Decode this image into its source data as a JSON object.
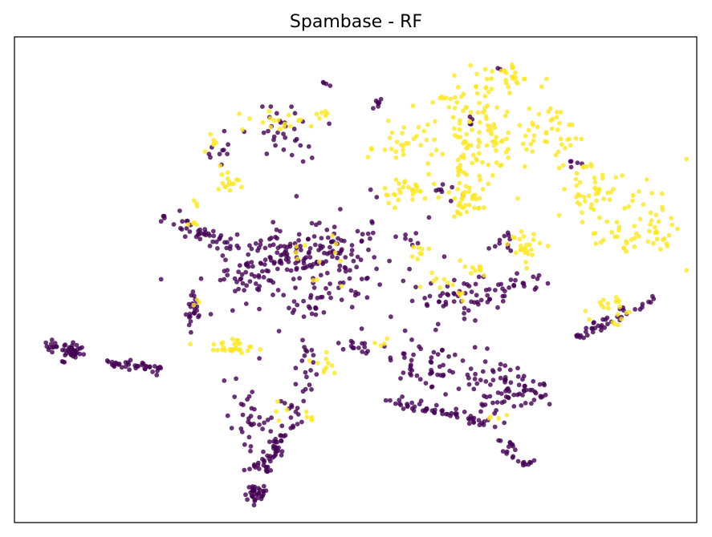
{
  "chart_data": {
    "type": "scatter",
    "title": "Spambase - RF",
    "xlabel": "",
    "ylabel": "",
    "xlim": [
      0,
      100
    ],
    "ylim": [
      0,
      100
    ],
    "axes_ticks": "none",
    "grid": false,
    "legend": "none",
    "colors": {
      "class_0": "#440154",
      "class_1": "#fde725",
      "frame": "#000000",
      "background": "#ffffff"
    },
    "series": [
      {
        "name": "class_0",
        "color": "#440154",
        "clusters": [
          {
            "cx": 5.5,
            "cy": 36.0,
            "sx": 0.6,
            "sy": 0.6,
            "n": 12
          },
          {
            "cx": 8.6,
            "cy": 35.2,
            "sx": 0.7,
            "sy": 0.7,
            "n": 40
          },
          {
            "cx": 7.2,
            "cy": 33.5,
            "sx": 0.3,
            "sy": 0.3,
            "n": 3
          },
          {
            "x0": 11.8,
            "y0": 33.3,
            "x1": 22.0,
            "y1": 31.5,
            "spread": 0.5,
            "n": 38
          },
          {
            "cx": 26.2,
            "cy": 45.0,
            "sx": 0.5,
            "sy": 2.2,
            "n": 24
          },
          {
            "x0": 22.5,
            "y0": 63.0,
            "x1": 33.0,
            "y1": 56.5,
            "spread": 0.8,
            "n": 46
          },
          {
            "cx": 40.0,
            "cy": 56.0,
            "sx": 2.6,
            "sy": 2.3,
            "n": 55
          },
          {
            "cx": 47.0,
            "cy": 55.5,
            "sx": 2.6,
            "sy": 3.0,
            "n": 45
          },
          {
            "cx": 44.5,
            "cy": 51.0,
            "sx": 7.5,
            "sy": 6.0,
            "n": 130
          },
          {
            "cx": 33.5,
            "cy": 51.5,
            "sx": 1.8,
            "sy": 2.8,
            "n": 28
          },
          {
            "cx": 39.5,
            "cy": 80.0,
            "sx": 3.0,
            "sy": 3.0,
            "n": 32
          },
          {
            "cx": 30.0,
            "cy": 77.5,
            "sx": 1.0,
            "sy": 2.2,
            "n": 10
          },
          {
            "cx": 53.0,
            "cy": 86.5,
            "sx": 0.5,
            "sy": 0.6,
            "n": 7
          },
          {
            "cx": 45.5,
            "cy": 90.5,
            "sx": 0.4,
            "sy": 0.4,
            "n": 4
          },
          {
            "x0": 44.0,
            "y0": 37.0,
            "x1": 39.0,
            "y1": 16.0,
            "spread": 0.9,
            "n": 45
          },
          {
            "x0": 39.0,
            "y0": 16.5,
            "x1": 35.5,
            "y1": 10.5,
            "spread": 0.9,
            "n": 40
          },
          {
            "cx": 34.0,
            "cy": 22.0,
            "sx": 1.5,
            "sy": 3.5,
            "n": 30
          },
          {
            "cx": 35.5,
            "cy": 6.0,
            "sx": 0.7,
            "sy": 1.0,
            "n": 34
          },
          {
            "x0": 48.0,
            "y0": 37.0,
            "x1": 52.0,
            "y1": 35.0,
            "spread": 0.6,
            "n": 12
          },
          {
            "x0": 55.0,
            "y0": 25.0,
            "x1": 71.5,
            "y1": 20.0,
            "spread": 0.6,
            "n": 55
          },
          {
            "cx": 61.0,
            "cy": 33.0,
            "sx": 3.5,
            "sy": 3.5,
            "n": 55
          },
          {
            "cx": 70.5,
            "cy": 29.0,
            "sx": 2.5,
            "sy": 3.5,
            "n": 50
          },
          {
            "cx": 75.5,
            "cy": 26.5,
            "sx": 1.5,
            "sy": 1.5,
            "n": 30
          },
          {
            "x0": 72.0,
            "y0": 17.0,
            "x1": 75.0,
            "y1": 11.5,
            "spread": 0.6,
            "n": 22
          },
          {
            "x0": 82.0,
            "y0": 38.0,
            "x1": 93.5,
            "y1": 46.5,
            "spread": 0.6,
            "n": 40
          },
          {
            "x0": 60.0,
            "y0": 45.0,
            "x1": 78.5,
            "y1": 50.0,
            "spread": 1.0,
            "n": 45
          },
          {
            "cx": 66.5,
            "cy": 46.0,
            "sx": 2.5,
            "sy": 3.0,
            "n": 25
          },
          {
            "cx": 72.0,
            "cy": 58.0,
            "sx": 1.0,
            "sy": 1.8,
            "n": 10
          },
          {
            "cx": 63.5,
            "cy": 68.5,
            "sx": 1.5,
            "sy": 1.5,
            "n": 8
          },
          {
            "cx": 57.5,
            "cy": 58.5,
            "sx": 1.0,
            "sy": 1.5,
            "n": 6
          },
          {
            "cx": 66.5,
            "cy": 82.5,
            "sx": 0.6,
            "sy": 0.6,
            "n": 4
          },
          {
            "cx": 71.0,
            "cy": 93.5,
            "sx": 0.3,
            "sy": 0.3,
            "n": 2
          },
          {
            "cx": 81.5,
            "cy": 74.0,
            "sx": 1.2,
            "sy": 0.8,
            "n": 5
          },
          {
            "cx": 44.5,
            "cy": 43.5,
            "sx": 1.0,
            "sy": 0.6,
            "n": 6
          }
        ]
      },
      {
        "name": "class_1",
        "color": "#fde725",
        "clusters": [
          {
            "cx": 38.0,
            "cy": 83.0,
            "sx": 2.5,
            "sy": 1.0,
            "n": 18
          },
          {
            "cx": 45.0,
            "cy": 84.0,
            "sx": 1.0,
            "sy": 1.0,
            "n": 6
          },
          {
            "cx": 29.0,
            "cy": 78.0,
            "sx": 0.6,
            "sy": 1.0,
            "n": 6
          },
          {
            "cx": 32.0,
            "cy": 70.0,
            "sx": 1.0,
            "sy": 1.0,
            "n": 10
          },
          {
            "cx": 57.0,
            "cy": 78.0,
            "sx": 2.5,
            "sy": 2.5,
            "n": 28
          },
          {
            "cx": 57.0,
            "cy": 68.0,
            "sx": 2.0,
            "sy": 1.5,
            "n": 28
          },
          {
            "cx": 66.0,
            "cy": 67.0,
            "sx": 2.0,
            "sy": 3.0,
            "n": 45
          },
          {
            "cx": 68.0,
            "cy": 82.0,
            "sx": 3.5,
            "sy": 5.5,
            "n": 120
          },
          {
            "cx": 72.5,
            "cy": 92.0,
            "sx": 1.0,
            "sy": 2.0,
            "n": 18
          },
          {
            "cx": 79.0,
            "cy": 80.0,
            "sx": 2.0,
            "sy": 3.0,
            "n": 40
          },
          {
            "cx": 84.5,
            "cy": 68.0,
            "sx": 2.0,
            "sy": 3.0,
            "n": 40
          },
          {
            "cx": 91.0,
            "cy": 62.0,
            "sx": 3.5,
            "sy": 4.5,
            "n": 50
          },
          {
            "cx": 95.0,
            "cy": 59.0,
            "sx": 0.8,
            "sy": 2.0,
            "n": 12
          },
          {
            "cx": 88.0,
            "cy": 44.0,
            "sx": 2.0,
            "sy": 1.5,
            "n": 20
          },
          {
            "cx": 75.0,
            "cy": 56.5,
            "sx": 1.5,
            "sy": 1.8,
            "n": 25
          },
          {
            "cx": 68.0,
            "cy": 52.0,
            "sx": 1.0,
            "sy": 1.0,
            "n": 10
          },
          {
            "cx": 32.5,
            "cy": 36.0,
            "sx": 1.8,
            "sy": 0.8,
            "n": 30
          },
          {
            "cx": 30.5,
            "cy": 70.5,
            "sx": 0.6,
            "sy": 1.2,
            "n": 6
          },
          {
            "cx": 26.0,
            "cy": 62.0,
            "sx": 0.8,
            "sy": 0.8,
            "n": 4
          },
          {
            "cx": 45.5,
            "cy": 32.5,
            "sx": 1.0,
            "sy": 1.0,
            "n": 10
          },
          {
            "cx": 42.5,
            "cy": 22.0,
            "sx": 0.6,
            "sy": 0.8,
            "n": 5
          },
          {
            "cx": 45.0,
            "cy": 55.0,
            "sx": 3.0,
            "sy": 3.0,
            "n": 12
          },
          {
            "cx": 59.5,
            "cy": 56.0,
            "sx": 1.5,
            "sy": 1.0,
            "n": 8
          },
          {
            "cx": 62.0,
            "cy": 48.5,
            "sx": 1.5,
            "sy": 1.0,
            "n": 8
          },
          {
            "cx": 71.0,
            "cy": 21.0,
            "sx": 0.8,
            "sy": 0.6,
            "n": 4
          },
          {
            "cx": 53.0,
            "cy": 37.5,
            "sx": 1.0,
            "sy": 0.6,
            "n": 4
          },
          {
            "cx": 38.0,
            "cy": 23.0,
            "sx": 0.8,
            "sy": 1.0,
            "n": 4
          },
          {
            "cx": 27.0,
            "cy": 45.5,
            "sx": 0.4,
            "sy": 0.6,
            "n": 3
          },
          {
            "cx": 26.5,
            "cy": 65.5,
            "sx": 0.6,
            "sy": 0.6,
            "n": 3
          },
          {
            "cx": 66.0,
            "cy": 46.5,
            "sx": 1.0,
            "sy": 0.8,
            "n": 4
          }
        ]
      }
    ]
  }
}
